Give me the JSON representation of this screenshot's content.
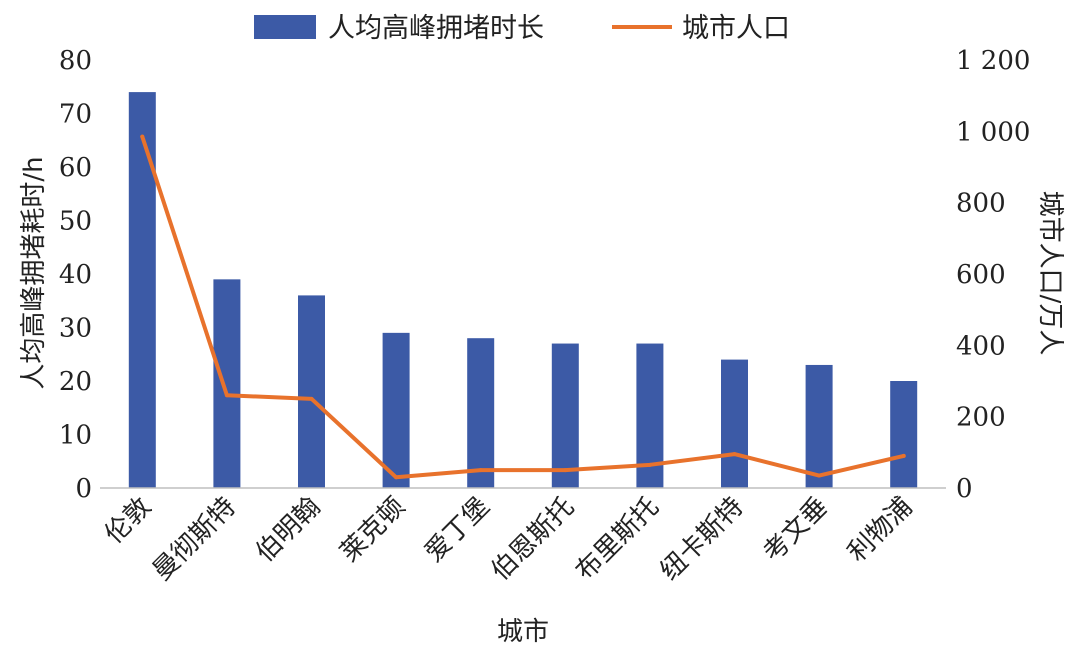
{
  "chart_data": {
    "type": "bar+line",
    "categories": [
      "伦敦",
      "曼彻斯特",
      "伯明翰",
      "莱克顿",
      "爱丁堡",
      "伯恩斯托",
      "布里斯托",
      "纽卡斯特",
      "考文垂",
      "利物浦"
    ],
    "series": [
      {
        "name": "人均高峰拥堵时长",
        "type": "bar",
        "axis": "left",
        "color": "#3c5aa6",
        "values": [
          74,
          39,
          36,
          29,
          28,
          27,
          27,
          24,
          23,
          20
        ]
      },
      {
        "name": "城市人口",
        "type": "line",
        "axis": "right",
        "color": "#e8722c",
        "values": [
          985,
          260,
          250,
          30,
          50,
          50,
          65,
          95,
          35,
          90
        ]
      }
    ],
    "xlabel": "城市",
    "ylabel": "人均高峰拥堵耗时/h",
    "y2label": "城市人口/万人",
    "ylim": [
      0,
      80
    ],
    "y2lim": [
      0,
      1200
    ],
    "yticks": [
      "0",
      "10",
      "20",
      "30",
      "40",
      "50",
      "60",
      "70",
      "80"
    ],
    "y2ticks": [
      "0",
      "200",
      "400",
      "600",
      "800",
      "1 000",
      "1 200"
    ],
    "legend_position": "top",
    "grid": false
  }
}
